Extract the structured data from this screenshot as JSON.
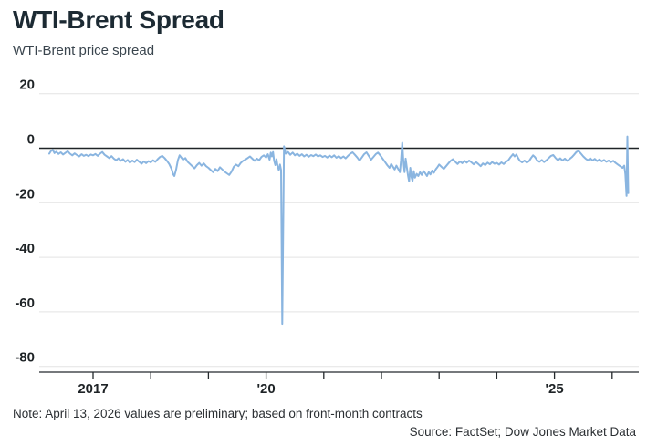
{
  "header": {
    "title": "WTI-Brent Spread",
    "subtitle": "WTI-Brent price spread"
  },
  "footer": {
    "note": "Note: April 13, 2026 values are preliminary; based on front-month contracts",
    "source": "Source: FactSet; Dow Jones Market Data"
  },
  "colors": {
    "line": "#8ab5e0",
    "zero_line": "#1f2427",
    "gridline": "#e3e3e3",
    "axis": "#24292d",
    "tick_label": "#1e2326",
    "title": "#1c2a33",
    "subtitle_text": "#3a454e",
    "footer_text": "#2b2f33"
  },
  "chart_data": {
    "type": "line",
    "title": "WTI-Brent Spread",
    "subtitle": "WTI-Brent price spread",
    "xlabel": "",
    "ylabel": "",
    "x_unit": "year (decimal)",
    "y_unit": "spread, dollars per barrel",
    "grid": "horizontal",
    "legend_position": "none",
    "ylim": [
      -80,
      20
    ],
    "xlim": [
      2016.2,
      2026.35
    ],
    "y_ticks": [
      20,
      0,
      -20,
      -40,
      -60,
      -80
    ],
    "x_ticks": [
      {
        "year": 2017,
        "label": "2017"
      },
      {
        "year": 2018,
        "label": ""
      },
      {
        "year": 2019,
        "label": ""
      },
      {
        "year": 2020,
        "label": "'20"
      },
      {
        "year": 2021,
        "label": ""
      },
      {
        "year": 2022,
        "label": ""
      },
      {
        "year": 2023,
        "label": ""
      },
      {
        "year": 2024,
        "label": ""
      },
      {
        "year": 2025,
        "label": "'25"
      },
      {
        "year": 2026,
        "label": ""
      }
    ],
    "series": [
      {
        "name": "WTI-Brent price spread",
        "points": [
          [
            2016.24,
            -2.0
          ],
          [
            2016.27,
            -1.0
          ],
          [
            2016.3,
            -0.6
          ],
          [
            2016.33,
            -1.8
          ],
          [
            2016.36,
            -1.3
          ],
          [
            2016.4,
            -2.1
          ],
          [
            2016.44,
            -1.5
          ],
          [
            2016.48,
            -2.3
          ],
          [
            2016.52,
            -1.7
          ],
          [
            2016.56,
            -1.1
          ],
          [
            2016.6,
            -2.0
          ],
          [
            2016.64,
            -2.6
          ],
          [
            2016.68,
            -1.9
          ],
          [
            2016.72,
            -2.5
          ],
          [
            2016.76,
            -3.0
          ],
          [
            2016.8,
            -2.2
          ],
          [
            2016.84,
            -2.8
          ],
          [
            2016.88,
            -2.4
          ],
          [
            2016.92,
            -2.9
          ],
          [
            2016.96,
            -2.3
          ],
          [
            2017.0,
            -2.6
          ],
          [
            2017.04,
            -2.1
          ],
          [
            2017.08,
            -2.8
          ],
          [
            2017.12,
            -2.0
          ],
          [
            2017.16,
            -1.4
          ],
          [
            2017.2,
            -2.4
          ],
          [
            2017.24,
            -3.0
          ],
          [
            2017.28,
            -3.6
          ],
          [
            2017.32,
            -2.9
          ],
          [
            2017.36,
            -3.8
          ],
          [
            2017.4,
            -4.4
          ],
          [
            2017.44,
            -3.7
          ],
          [
            2017.48,
            -4.6
          ],
          [
            2017.52,
            -4.0
          ],
          [
            2017.56,
            -5.0
          ],
          [
            2017.6,
            -4.3
          ],
          [
            2017.64,
            -5.3
          ],
          [
            2017.68,
            -4.5
          ],
          [
            2017.72,
            -5.1
          ],
          [
            2017.76,
            -4.2
          ],
          [
            2017.8,
            -5.0
          ],
          [
            2017.84,
            -5.7
          ],
          [
            2017.88,
            -4.8
          ],
          [
            2017.92,
            -5.5
          ],
          [
            2017.96,
            -4.7
          ],
          [
            2018.0,
            -5.2
          ],
          [
            2018.04,
            -4.4
          ],
          [
            2018.08,
            -5.0
          ],
          [
            2018.12,
            -4.0
          ],
          [
            2018.16,
            -3.2
          ],
          [
            2018.2,
            -2.8
          ],
          [
            2018.24,
            -3.6
          ],
          [
            2018.28,
            -4.6
          ],
          [
            2018.32,
            -5.8
          ],
          [
            2018.36,
            -7.6
          ],
          [
            2018.39,
            -9.6
          ],
          [
            2018.41,
            -10.2
          ],
          [
            2018.44,
            -7.8
          ],
          [
            2018.47,
            -4.4
          ],
          [
            2018.5,
            -2.6
          ],
          [
            2018.53,
            -3.4
          ],
          [
            2018.56,
            -4.2
          ],
          [
            2018.6,
            -3.6
          ],
          [
            2018.64,
            -5.0
          ],
          [
            2018.68,
            -5.8
          ],
          [
            2018.72,
            -6.6
          ],
          [
            2018.76,
            -7.4
          ],
          [
            2018.8,
            -6.2
          ],
          [
            2018.84,
            -5.4
          ],
          [
            2018.88,
            -6.4
          ],
          [
            2018.92,
            -5.6
          ],
          [
            2018.96,
            -6.6
          ],
          [
            2019.0,
            -7.2
          ],
          [
            2019.04,
            -8.0
          ],
          [
            2019.08,
            -8.8
          ],
          [
            2019.12,
            -7.6
          ],
          [
            2019.16,
            -8.4
          ],
          [
            2019.2,
            -7.0
          ],
          [
            2019.24,
            -7.8
          ],
          [
            2019.28,
            -8.6
          ],
          [
            2019.32,
            -9.2
          ],
          [
            2019.36,
            -9.8
          ],
          [
            2019.4,
            -8.6
          ],
          [
            2019.44,
            -6.8
          ],
          [
            2019.48,
            -6.0
          ],
          [
            2019.52,
            -6.6
          ],
          [
            2019.56,
            -5.4
          ],
          [
            2019.6,
            -4.6
          ],
          [
            2019.64,
            -4.2
          ],
          [
            2019.68,
            -3.6
          ],
          [
            2019.72,
            -3.0
          ],
          [
            2019.76,
            -3.8
          ],
          [
            2019.8,
            -4.6
          ],
          [
            2019.84,
            -3.8
          ],
          [
            2019.88,
            -4.4
          ],
          [
            2019.92,
            -3.2
          ],
          [
            2019.96,
            -2.6
          ],
          [
            2020.0,
            -3.4
          ],
          [
            2020.03,
            -2.2
          ],
          [
            2020.06,
            -4.2
          ],
          [
            2020.08,
            -1.6
          ],
          [
            2020.1,
            -3.0
          ],
          [
            2020.12,
            -1.4
          ],
          [
            2020.14,
            -4.6
          ],
          [
            2020.16,
            -6.2
          ],
          [
            2020.18,
            -4.0
          ],
          [
            2020.2,
            -6.6
          ],
          [
            2020.22,
            -8.0
          ],
          [
            2020.24,
            -6.0
          ],
          [
            2020.26,
            -8.0
          ],
          [
            2020.28,
            -64.4
          ],
          [
            2020.31,
            0.7
          ],
          [
            2020.34,
            -2.0
          ],
          [
            2020.38,
            -1.4
          ],
          [
            2020.42,
            -2.4
          ],
          [
            2020.46,
            -1.6
          ],
          [
            2020.5,
            -2.6
          ],
          [
            2020.54,
            -2.0
          ],
          [
            2020.58,
            -2.8
          ],
          [
            2020.62,
            -2.2
          ],
          [
            2020.66,
            -3.0
          ],
          [
            2020.7,
            -2.4
          ],
          [
            2020.74,
            -3.1
          ],
          [
            2020.78,
            -2.5
          ],
          [
            2020.82,
            -2.9
          ],
          [
            2020.86,
            -2.3
          ],
          [
            2020.9,
            -3.0
          ],
          [
            2020.94,
            -2.6
          ],
          [
            2020.98,
            -3.2
          ],
          [
            2021.02,
            -2.8
          ],
          [
            2021.06,
            -3.4
          ],
          [
            2021.1,
            -2.7
          ],
          [
            2021.14,
            -3.3
          ],
          [
            2021.18,
            -2.6
          ],
          [
            2021.22,
            -3.5
          ],
          [
            2021.26,
            -2.9
          ],
          [
            2021.3,
            -3.6
          ],
          [
            2021.34,
            -3.0
          ],
          [
            2021.38,
            -3.7
          ],
          [
            2021.42,
            -2.8
          ],
          [
            2021.46,
            -2.0
          ],
          [
            2021.5,
            -1.5
          ],
          [
            2021.54,
            -2.4
          ],
          [
            2021.58,
            -3.4
          ],
          [
            2021.62,
            -4.5
          ],
          [
            2021.66,
            -3.4
          ],
          [
            2021.7,
            -2.2
          ],
          [
            2021.74,
            -1.5
          ],
          [
            2021.78,
            -2.8
          ],
          [
            2021.82,
            -4.2
          ],
          [
            2021.86,
            -3.2
          ],
          [
            2021.9,
            -2.2
          ],
          [
            2021.94,
            -1.6
          ],
          [
            2021.98,
            -2.6
          ],
          [
            2022.02,
            -3.8
          ],
          [
            2022.06,
            -5.0
          ],
          [
            2022.1,
            -6.2
          ],
          [
            2022.14,
            -7.2
          ],
          [
            2022.17,
            -5.8
          ],
          [
            2022.2,
            -6.8
          ],
          [
            2022.23,
            -7.8
          ],
          [
            2022.26,
            -6.4
          ],
          [
            2022.29,
            -7.6
          ],
          [
            2022.32,
            -8.8
          ],
          [
            2022.34,
            -4.2
          ],
          [
            2022.36,
            2.0
          ],
          [
            2022.38,
            -4.6
          ],
          [
            2022.4,
            -8.8
          ],
          [
            2022.42,
            -3.8
          ],
          [
            2022.44,
            -7.0
          ],
          [
            2022.46,
            -10.0
          ],
          [
            2022.48,
            -12.2
          ],
          [
            2022.5,
            -7.2
          ],
          [
            2022.52,
            -10.6
          ],
          [
            2022.54,
            -12.0
          ],
          [
            2022.56,
            -8.4
          ],
          [
            2022.58,
            -10.8
          ],
          [
            2022.61,
            -9.4
          ],
          [
            2022.64,
            -10.2
          ],
          [
            2022.67,
            -8.8
          ],
          [
            2022.7,
            -9.8
          ],
          [
            2022.73,
            -8.4
          ],
          [
            2022.76,
            -9.2
          ],
          [
            2022.79,
            -10.2
          ],
          [
            2022.82,
            -8.8
          ],
          [
            2022.85,
            -9.6
          ],
          [
            2022.88,
            -8.2
          ],
          [
            2022.91,
            -9.0
          ],
          [
            2022.94,
            -7.8
          ],
          [
            2022.97,
            -7.0
          ],
          [
            2023.0,
            -6.0
          ],
          [
            2023.04,
            -6.8
          ],
          [
            2023.08,
            -7.6
          ],
          [
            2023.12,
            -6.6
          ],
          [
            2023.16,
            -5.6
          ],
          [
            2023.2,
            -4.6
          ],
          [
            2023.24,
            -4.0
          ],
          [
            2023.28,
            -5.0
          ],
          [
            2023.32,
            -5.8
          ],
          [
            2023.36,
            -4.8
          ],
          [
            2023.4,
            -5.5
          ],
          [
            2023.44,
            -4.6
          ],
          [
            2023.48,
            -5.3
          ],
          [
            2023.52,
            -4.5
          ],
          [
            2023.56,
            -5.2
          ],
          [
            2023.6,
            -5.9
          ],
          [
            2023.64,
            -5.1
          ],
          [
            2023.68,
            -5.8
          ],
          [
            2023.72,
            -6.6
          ],
          [
            2023.76,
            -5.6
          ],
          [
            2023.8,
            -6.2
          ],
          [
            2023.84,
            -5.3
          ],
          [
            2023.88,
            -5.9
          ],
          [
            2023.92,
            -5.1
          ],
          [
            2023.96,
            -5.7
          ],
          [
            2024.0,
            -5.4
          ],
          [
            2024.04,
            -6.0
          ],
          [
            2024.08,
            -5.2
          ],
          [
            2024.12,
            -5.8
          ],
          [
            2024.16,
            -5.0
          ],
          [
            2024.2,
            -4.4
          ],
          [
            2024.24,
            -3.2
          ],
          [
            2024.28,
            -2.2
          ],
          [
            2024.31,
            -3.0
          ],
          [
            2024.34,
            -2.3
          ],
          [
            2024.37,
            -3.6
          ],
          [
            2024.4,
            -4.6
          ],
          [
            2024.44,
            -5.2
          ],
          [
            2024.48,
            -4.5
          ],
          [
            2024.52,
            -5.3
          ],
          [
            2024.56,
            -4.7
          ],
          [
            2024.6,
            -3.4
          ],
          [
            2024.63,
            -2.6
          ],
          [
            2024.66,
            -3.2
          ],
          [
            2024.7,
            -4.4
          ],
          [
            2024.74,
            -5.0
          ],
          [
            2024.78,
            -4.3
          ],
          [
            2024.82,
            -5.1
          ],
          [
            2024.86,
            -4.4
          ],
          [
            2024.9,
            -3.6
          ],
          [
            2024.94,
            -2.8
          ],
          [
            2024.98,
            -2.5
          ],
          [
            2025.02,
            -3.6
          ],
          [
            2025.06,
            -4.4
          ],
          [
            2025.1,
            -3.7
          ],
          [
            2025.14,
            -4.5
          ],
          [
            2025.18,
            -3.8
          ],
          [
            2025.22,
            -4.6
          ],
          [
            2025.26,
            -4.0
          ],
          [
            2025.3,
            -3.3
          ],
          [
            2025.34,
            -2.4
          ],
          [
            2025.38,
            -1.4
          ],
          [
            2025.42,
            -1.0
          ],
          [
            2025.46,
            -2.0
          ],
          [
            2025.5,
            -3.0
          ],
          [
            2025.54,
            -3.8
          ],
          [
            2025.58,
            -4.4
          ],
          [
            2025.62,
            -3.7
          ],
          [
            2025.66,
            -4.5
          ],
          [
            2025.7,
            -3.9
          ],
          [
            2025.74,
            -4.7
          ],
          [
            2025.78,
            -4.1
          ],
          [
            2025.82,
            -4.8
          ],
          [
            2025.86,
            -4.3
          ],
          [
            2025.9,
            -5.0
          ],
          [
            2025.94,
            -4.5
          ],
          [
            2025.98,
            -5.1
          ],
          [
            2026.02,
            -4.6
          ],
          [
            2026.06,
            -5.4
          ],
          [
            2026.1,
            -6.0
          ],
          [
            2026.14,
            -6.6
          ],
          [
            2026.18,
            -7.2
          ],
          [
            2026.21,
            -6.4
          ],
          [
            2026.23,
            -9.5
          ],
          [
            2026.25,
            -17.5
          ],
          [
            2026.265,
            4.3
          ],
          [
            2026.28,
            -16.5
          ]
        ]
      }
    ]
  }
}
